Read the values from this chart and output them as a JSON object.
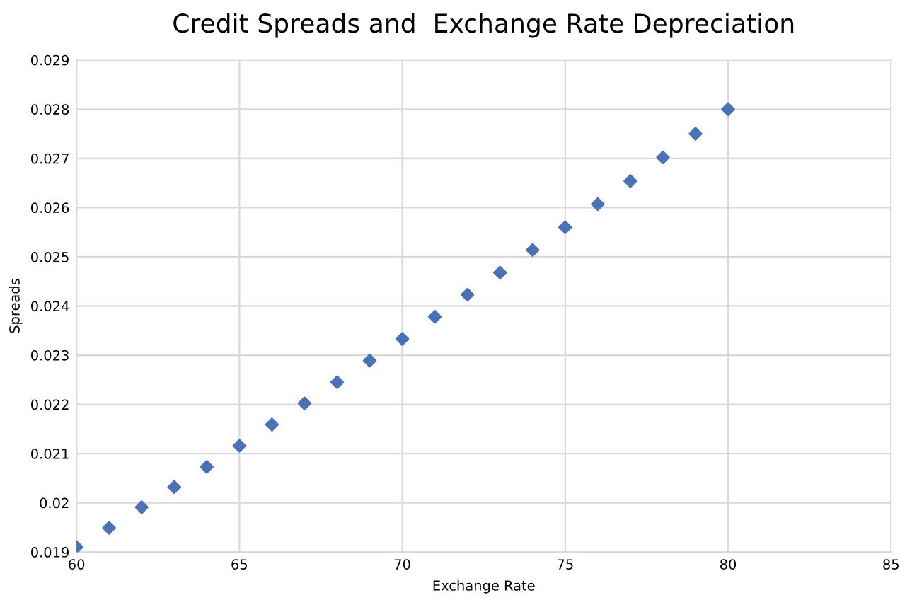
{
  "chart_data": {
    "type": "scatter",
    "title": "Credit Spreads and  Exchange Rate Depreciation",
    "xlabel": "Exchange Rate",
    "ylabel": "Spreads",
    "series": [
      {
        "color": "#4a72b8",
        "x": [
          60,
          61,
          62,
          63,
          64,
          65,
          66,
          67,
          68,
          69,
          70,
          71,
          72,
          73,
          74,
          75,
          76,
          77,
          78,
          79,
          80
        ],
        "values": [
          0.0191,
          0.01949,
          0.01991,
          0.02032,
          0.02073,
          0.02116,
          0.02159,
          0.02202,
          0.02245,
          0.02289,
          0.02333,
          0.02378,
          0.02423,
          0.02468,
          0.02514,
          0.0256,
          0.02607,
          0.02654,
          0.02702,
          0.0275,
          0.028
        ]
      }
    ],
    "xlim": [
      60,
      85
    ],
    "xticks": [
      60,
      65,
      70,
      75,
      80,
      85
    ],
    "ylim": [
      0.019,
      0.029
    ],
    "yticks": [
      0.019,
      0.02,
      0.021,
      0.022,
      0.023,
      0.024,
      0.025,
      0.026,
      0.027,
      0.028,
      0.029
    ],
    "grid": true,
    "marker": "diamond",
    "legend": false
  }
}
